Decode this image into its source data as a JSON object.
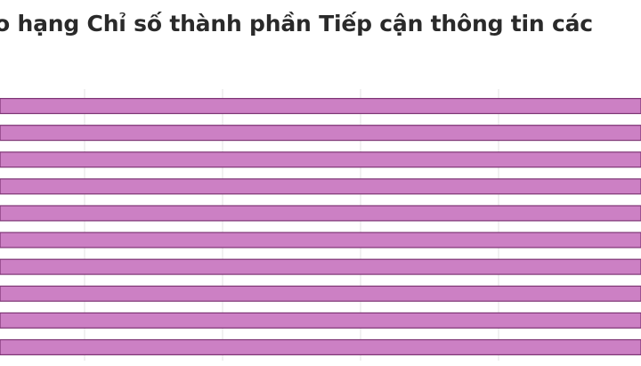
{
  "chart_data": {
    "type": "bar",
    "orientation": "horizontal",
    "title": "o hạng Chỉ số thành phần Tiếp cận thông tin các",
    "xlabel": "",
    "ylabel": "",
    "grid": true,
    "categories": [
      "",
      "",
      "",
      "",
      "",
      "",
      "",
      "",
      "",
      ""
    ],
    "series": [
      {
        "values": [
          100,
          100,
          100,
          100,
          100,
          100,
          100,
          100,
          100,
          100
        ]
      }
    ],
    "xlim": [
      0,
      100
    ]
  },
  "colors": {
    "bar": "#cc80c4",
    "bar_edge": "#7e3575",
    "grid": "#e3e3e3",
    "title": "#2a2a2a"
  }
}
